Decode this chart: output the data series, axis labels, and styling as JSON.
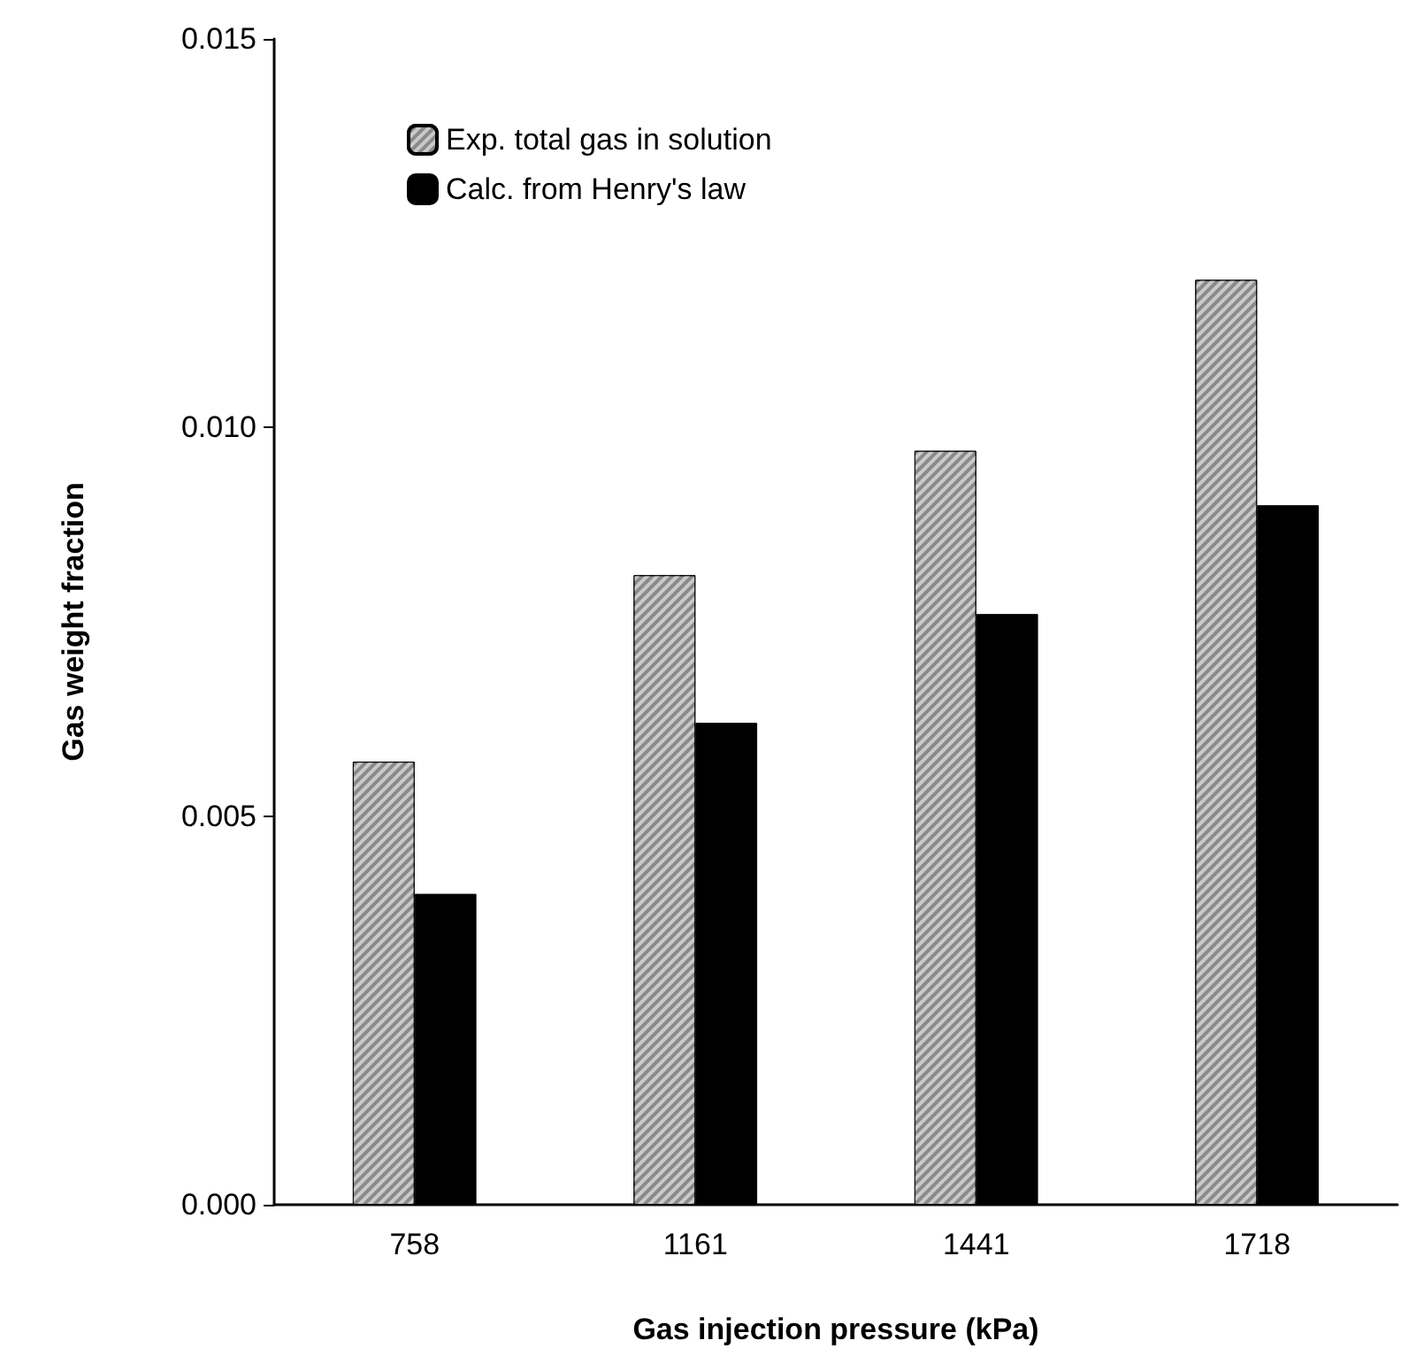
{
  "chart_data": {
    "type": "bar",
    "xlabel": "Gas injection pressure (kPa)",
    "ylabel": "Gas weight fraction",
    "categories": [
      "758",
      "1161",
      "1441",
      "1718"
    ],
    "series": [
      {
        "name": "Exp. total gas in solution",
        "color": "#8a8a8a",
        "values": [
          0.0057,
          0.0081,
          0.0097,
          0.0119
        ]
      },
      {
        "name": "Calc. from Henry's law",
        "color": "#000000",
        "values": [
          0.004,
          0.0062,
          0.0076,
          0.009
        ]
      }
    ],
    "ylim": [
      0,
      0.015
    ],
    "yticks": [
      {
        "value": 0,
        "label": "0.000"
      },
      {
        "value": 0.005,
        "label": "0.005"
      },
      {
        "value": 0.01,
        "label": "0.010"
      },
      {
        "value": 0.015,
        "label": "0.015"
      }
    ],
    "grid": false,
    "legend": "top left"
  }
}
